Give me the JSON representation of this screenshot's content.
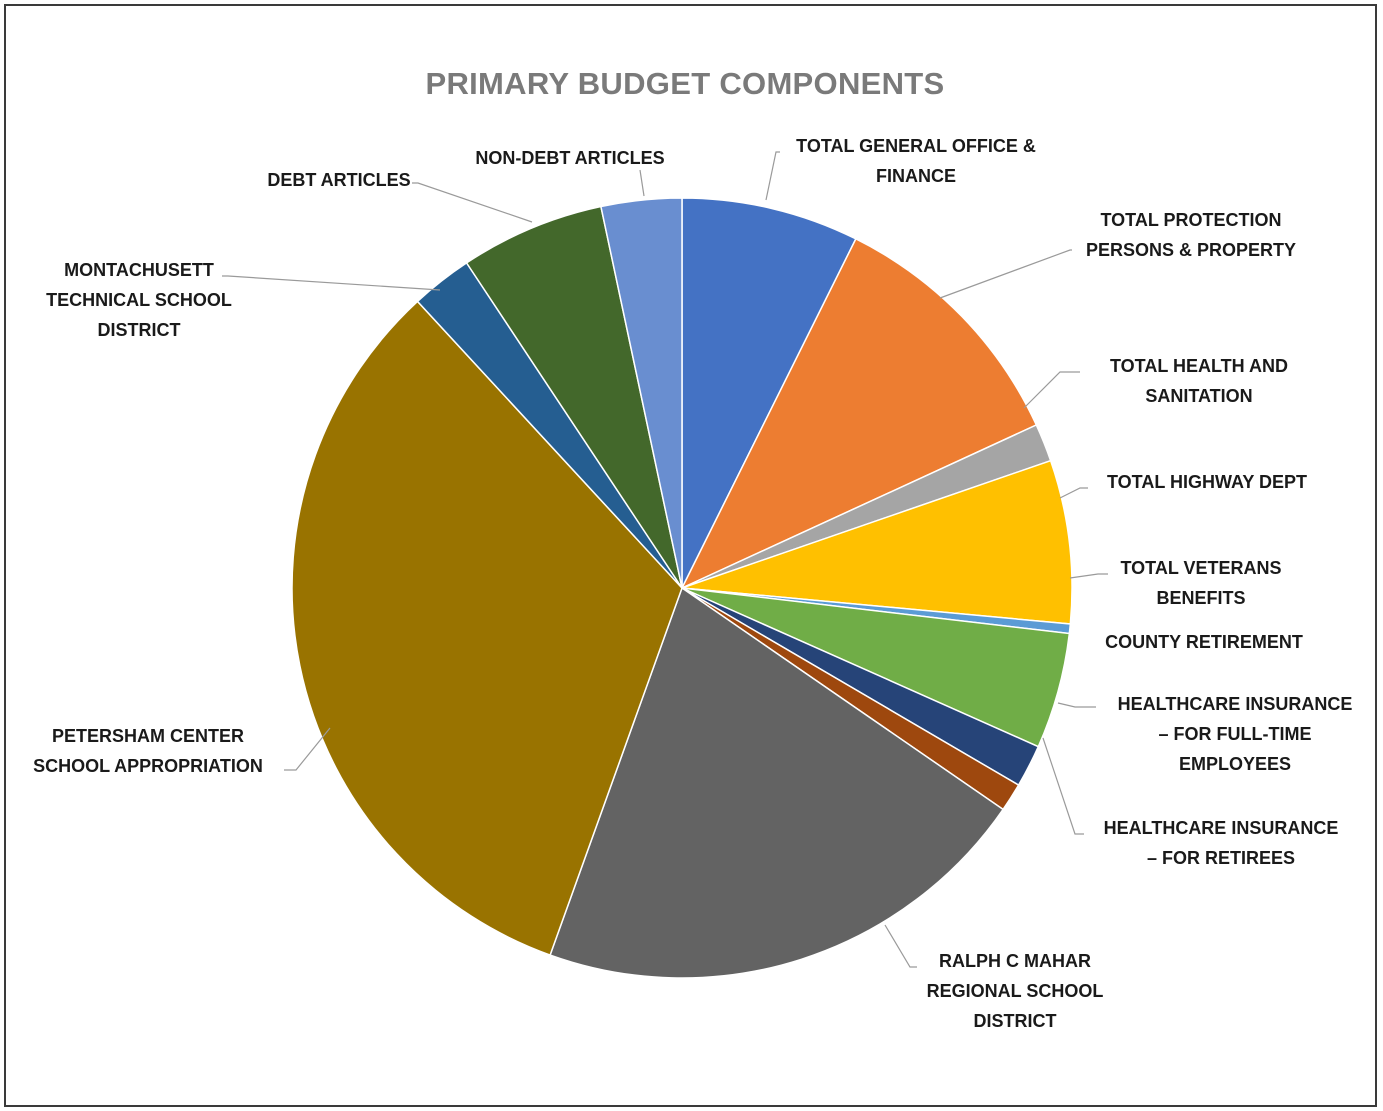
{
  "chart_data": {
    "type": "pie",
    "title": "PRIMARY BUDGET COMPONENTS",
    "unit": "percent of total",
    "slices": [
      {
        "label": "TOTAL GENERAL OFFICE & FINANCE",
        "value": 7.5,
        "color": "#4472c4"
      },
      {
        "label": "TOTAL PROTECTION PERSONS & PROPERTY",
        "value": 11.0,
        "color": "#ed7d31"
      },
      {
        "label": "TOTAL HEALTH AND SANITATION",
        "value": 1.6,
        "color": "#a5a5a5"
      },
      {
        "label": "TOTAL HIGHWAY DEPT",
        "value": 6.9,
        "color": "#ffc000"
      },
      {
        "label": "TOTAL VETERANS BENEFITS",
        "value": 0.4,
        "color": "#5b9bd5"
      },
      {
        "label": "COUNTY RETIREMENT",
        "value": 4.9,
        "color": "#70ad47"
      },
      {
        "label": "HEALTHCARE INSURANCE – FOR FULL-TIME EMPLOYEES",
        "value": 1.8,
        "color": "#264478"
      },
      {
        "label": "HEALTHCARE INSURANCE – FOR RETIREES",
        "value": 1.2,
        "color": "#9e480e"
      },
      {
        "label": "RALPH C MAHAR REGIONAL SCHOOL DISTRICT",
        "value": 21.3,
        "color": "#636363"
      },
      {
        "label": "PETERSHAM CENTER SCHOOL APPROPRIATION",
        "value": 33.3,
        "color": "#997300"
      },
      {
        "label": "MONTACHUSETT TECHNICAL SCHOOL DISTRICT",
        "value": 2.6,
        "color": "#255e91"
      },
      {
        "label": "DEBT ARTICLES",
        "value": 6.1,
        "color": "#43682b"
      },
      {
        "label": "NON-DEBT ARTICLES",
        "value": 3.4,
        "color": "#698ed0"
      }
    ],
    "legend": "none (leader-line data labels)"
  }
}
